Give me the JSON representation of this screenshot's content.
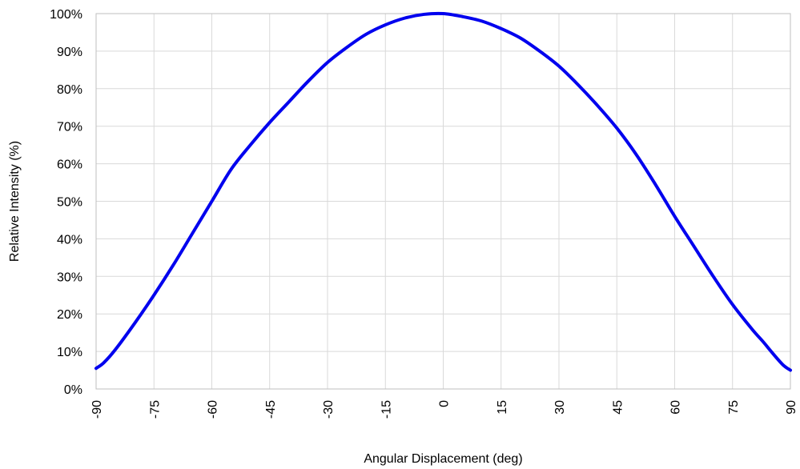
{
  "chart_data": {
    "type": "line",
    "title": "",
    "xlabel": "Angular Displacement (deg)",
    "ylabel": "Relative Intensity (%)",
    "xlim": [
      -90,
      90
    ],
    "ylim": [
      0,
      100
    ],
    "grid": true,
    "legend": "none",
    "x_ticks": [
      -90,
      -75,
      -60,
      -45,
      -30,
      -15,
      0,
      15,
      30,
      45,
      60,
      75,
      90
    ],
    "x_tick_labels": [
      "-90",
      "-75",
      "-60",
      "-45",
      "-30",
      "-15",
      "0",
      "15",
      "30",
      "45",
      "60",
      "75",
      "90"
    ],
    "y_ticks": [
      0,
      10,
      20,
      30,
      40,
      50,
      60,
      70,
      80,
      90,
      100
    ],
    "y_tick_labels": [
      "0%",
      "10%",
      "20%",
      "30%",
      "40%",
      "50%",
      "60%",
      "70%",
      "80%",
      "90%",
      "100%"
    ],
    "series": [
      {
        "color": "#0000ee",
        "x": [
          -90,
          -88,
          -85,
          -80,
          -75,
          -70,
          -65,
          -60,
          -55,
          -50,
          -45,
          -40,
          -35,
          -30,
          -25,
          -20,
          -15,
          -10,
          -5,
          0,
          5,
          10,
          15,
          20,
          25,
          30,
          35,
          40,
          45,
          50,
          55,
          60,
          65,
          70,
          75,
          80,
          83,
          85,
          88,
          90
        ],
        "y": [
          5.5,
          7,
          10.5,
          17.5,
          25,
          33,
          41.5,
          50,
          58.5,
          65,
          71,
          76.5,
          82,
          87,
          91,
          94.5,
          97,
          98.8,
          99.8,
          100,
          99.2,
          98,
          96,
          93.5,
          90,
          86,
          81,
          75.5,
          69.5,
          62.5,
          54.5,
          46,
          38,
          30,
          22.5,
          16,
          12.5,
          10,
          6.5,
          5
        ]
      }
    ]
  }
}
